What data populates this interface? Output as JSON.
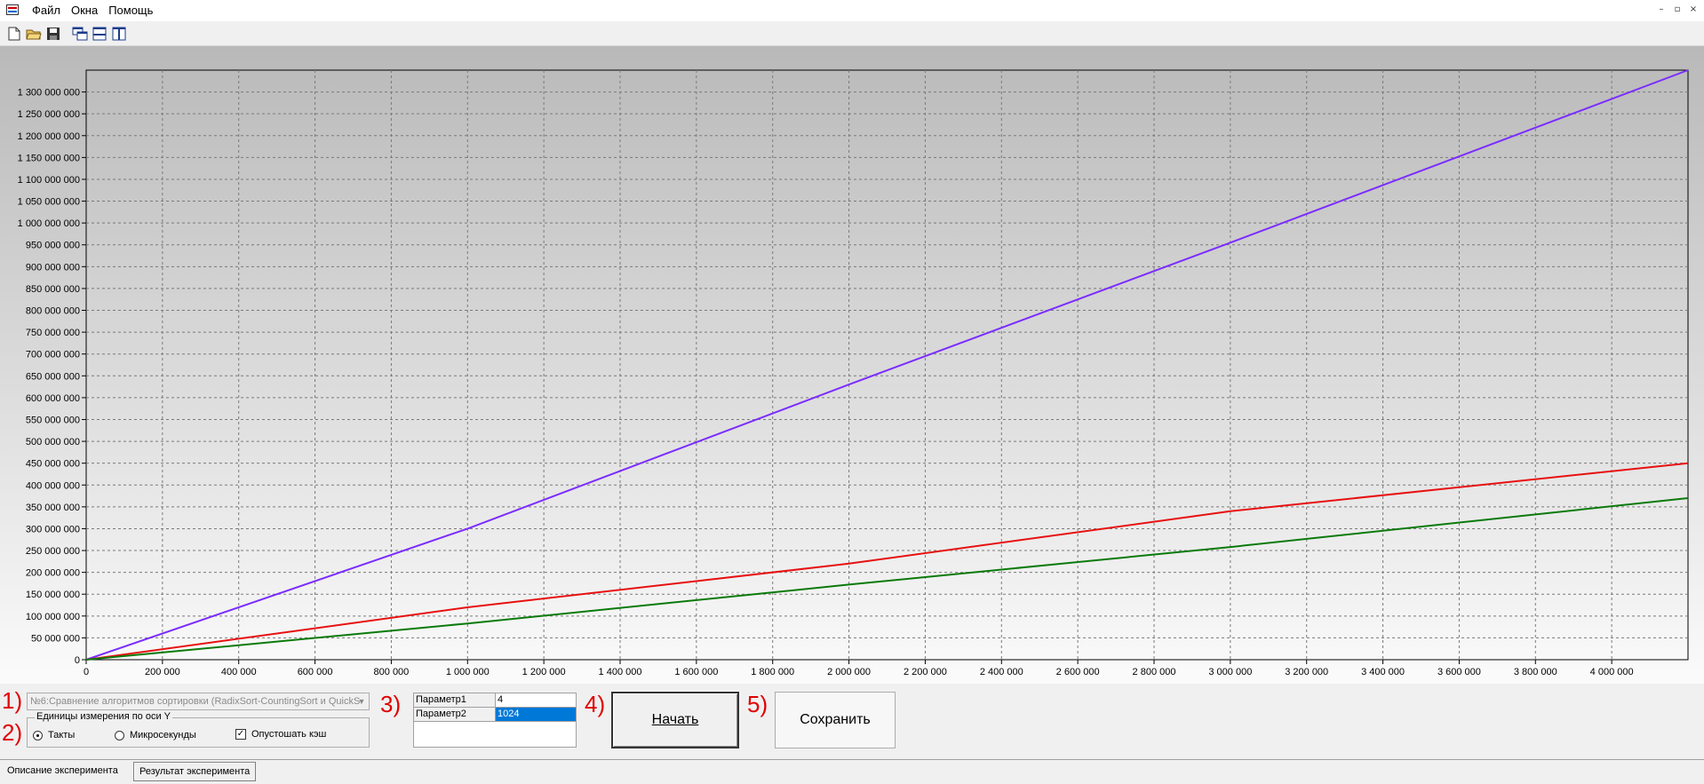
{
  "menu": {
    "items": [
      "Файл",
      "Окна",
      "Помощь"
    ]
  },
  "window_controls": [
    "–",
    "▫",
    "×"
  ],
  "toolbar": {
    "icons": [
      "new-file-icon",
      "open-folder-icon",
      "save-disk-icon",
      "cascade-windows-icon",
      "tile-horizontal-icon",
      "tile-vertical-icon"
    ]
  },
  "chart_data": {
    "type": "line",
    "xlim": [
      0,
      4200000
    ],
    "ylim": [
      0,
      1350000000
    ],
    "x_ticks": [
      0,
      200000,
      400000,
      600000,
      800000,
      1000000,
      1200000,
      1400000,
      1600000,
      1800000,
      2000000,
      2200000,
      2400000,
      2600000,
      2800000,
      3000000,
      3200000,
      3400000,
      3600000,
      3800000,
      4000000
    ],
    "x_tick_labels": [
      "0",
      "200 000",
      "400 000",
      "600 000",
      "800 000",
      "1 000 000",
      "1 200 000",
      "1 400 000",
      "1 600 000",
      "1 800 000",
      "2 000 000",
      "2 200 000",
      "2 400 000",
      "2 600 000",
      "2 800 000",
      "3 000 000",
      "3 200 000",
      "3 400 000",
      "3 600 000",
      "3 800 000",
      "4 000 000"
    ],
    "y_ticks": [
      0,
      50000000,
      100000000,
      150000000,
      200000000,
      250000000,
      300000000,
      350000000,
      400000000,
      450000000,
      500000000,
      550000000,
      600000000,
      650000000,
      700000000,
      750000000,
      800000000,
      850000000,
      900000000,
      950000000,
      1000000000,
      1050000000,
      1100000000,
      1150000000,
      1200000000,
      1250000000,
      1300000000
    ],
    "y_tick_labels": [
      "0",
      "50 000 000",
      "100 000 000",
      "150 000 000",
      "200 000 000",
      "250 000 000",
      "300 000 000",
      "350 000 000",
      "400 000 000",
      "450 000 000",
      "500 000 000",
      "550 000 000",
      "600 000 000",
      "650 000 000",
      "700 000 000",
      "750 000 000",
      "800 000 000",
      "850 000 000",
      "900 000 000",
      "950 000 000",
      "1 000 000 000",
      "1 050 000 000",
      "1 100 000 000",
      "1 150 000 000",
      "1 200 000 000",
      "1 250 000 000",
      "1 300 000 000"
    ],
    "grid": true,
    "x": [
      0,
      1000000,
      2000000,
      3000000,
      4200000
    ],
    "series": [
      {
        "color": "#7b2cff",
        "values": [
          0,
          300000000,
          630000000,
          955000000,
          1350000000
        ]
      },
      {
        "color": "#e81010",
        "values": [
          0,
          120000000,
          220000000,
          340000000,
          450000000
        ]
      },
      {
        "color": "#0a7a0a",
        "values": [
          0,
          83000000,
          172000000,
          258000000,
          370000000
        ]
      }
    ]
  },
  "controls": {
    "labels": [
      "1)",
      "2)",
      "3)",
      "4)",
      "5)"
    ],
    "experiment_combo": "№6:Сравнение алгоритмов сортировки (RadixSort-CountingSort и QuickS",
    "y_units": {
      "legend": "Единицы измерения по оси Y",
      "option_ticks": "Такты",
      "option_micro": "Микросекунды",
      "clear_cache": "Опустошать кэш"
    },
    "params": [
      {
        "name": "Параметр1",
        "value": "4"
      },
      {
        "name": "Параметр2",
        "value": "1024"
      }
    ],
    "start_button": "Начать",
    "save_button": "Сохранить"
  },
  "tabs": [
    "Описание эксперимента",
    "Результат эксперимента"
  ]
}
